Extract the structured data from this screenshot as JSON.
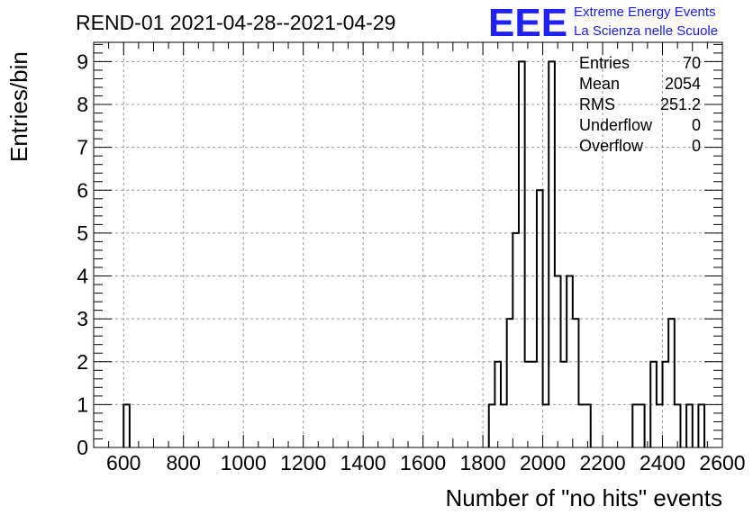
{
  "chart_data": {
    "type": "histogram",
    "title": "REND-01 2021-04-28--2021-04-29",
    "xlabel": "Number of \"no hits\" events",
    "ylabel": "Entries/bin",
    "xlim": [
      500,
      2600
    ],
    "ylim": [
      0,
      9.45
    ],
    "grid": true,
    "bin_width": 20,
    "x_ticks": [
      "600",
      "800",
      "1000",
      "1200",
      "1400",
      "1600",
      "1800",
      "2000",
      "2200",
      "2400",
      "2600"
    ],
    "y_ticks": [
      "0",
      "1",
      "2",
      "3",
      "4",
      "5",
      "6",
      "7",
      "8",
      "9"
    ],
    "bins": [
      {
        "x": 600,
        "count": 1
      },
      {
        "x": 1820,
        "count": 1
      },
      {
        "x": 1840,
        "count": 2
      },
      {
        "x": 1860,
        "count": 1
      },
      {
        "x": 1880,
        "count": 3
      },
      {
        "x": 1900,
        "count": 5
      },
      {
        "x": 1920,
        "count": 9
      },
      {
        "x": 1940,
        "count": 2
      },
      {
        "x": 1960,
        "count": 2
      },
      {
        "x": 1980,
        "count": 6
      },
      {
        "x": 2000,
        "count": 1
      },
      {
        "x": 2020,
        "count": 9
      },
      {
        "x": 2040,
        "count": 4
      },
      {
        "x": 2060,
        "count": 2
      },
      {
        "x": 2080,
        "count": 4
      },
      {
        "x": 2100,
        "count": 3
      },
      {
        "x": 2120,
        "count": 1
      },
      {
        "x": 2140,
        "count": 1
      },
      {
        "x": 2300,
        "count": 1
      },
      {
        "x": 2320,
        "count": 1
      },
      {
        "x": 2360,
        "count": 2
      },
      {
        "x": 2380,
        "count": 1
      },
      {
        "x": 2400,
        "count": 2
      },
      {
        "x": 2420,
        "count": 3
      },
      {
        "x": 2440,
        "count": 1
      },
      {
        "x": 2480,
        "count": 1
      },
      {
        "x": 2520,
        "count": 1
      }
    ],
    "stats": [
      {
        "label": "Entries",
        "value": "70"
      },
      {
        "label": "Mean",
        "value": "2054"
      },
      {
        "label": "RMS",
        "value": "251.2"
      },
      {
        "label": "Underflow",
        "value": "0"
      },
      {
        "label": "Overflow",
        "value": "0"
      }
    ]
  },
  "logo": {
    "mark": "EEE",
    "line1": "Extreme Energy Events",
    "line2": "La Scienza nelle Scuole",
    "color": "#1a1aff"
  }
}
